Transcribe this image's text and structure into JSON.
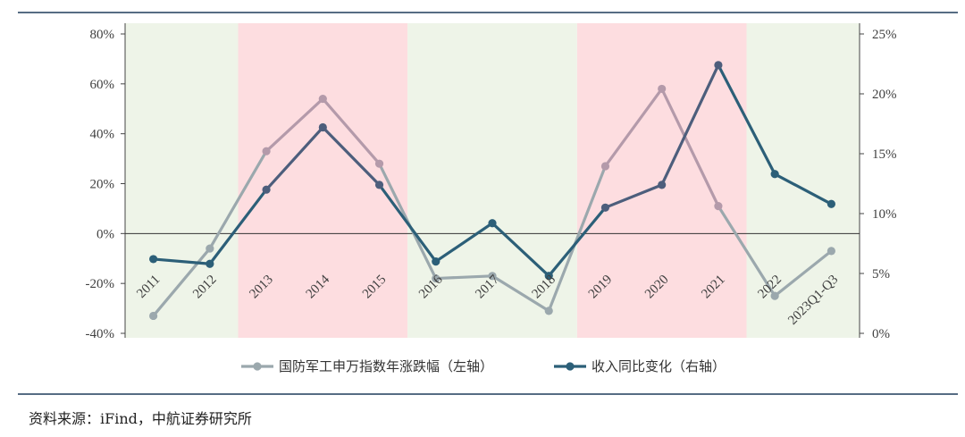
{
  "chart_data": {
    "type": "line",
    "categories": [
      "2011",
      "2012",
      "2013",
      "2014",
      "2015",
      "2016",
      "2017",
      "2018",
      "2019",
      "2020",
      "2021",
      "2022",
      "2023Q1-Q3"
    ],
    "series": [
      {
        "name": "国防军工申万指数年涨跌幅（左轴）",
        "axis": "left",
        "values": [
          -0.33,
          -0.06,
          0.33,
          0.54,
          0.28,
          -0.18,
          -0.17,
          -0.31,
          0.27,
          0.58,
          0.11,
          -0.25,
          -0.07
        ]
      },
      {
        "name": "收入同比变化（右轴）",
        "axis": "right",
        "values": [
          0.062,
          0.058,
          0.12,
          0.172,
          0.124,
          0.06,
          0.092,
          0.048,
          0.105,
          0.124,
          0.224,
          0.133,
          0.108
        ]
      }
    ],
    "left_axis": {
      "range": [
        -0.4,
        0.8
      ],
      "ticks": [
        "80%",
        "60%",
        "40%",
        "20%",
        "0%",
        "-20%",
        "-40%"
      ]
    },
    "right_axis": {
      "range": [
        0,
        0.25
      ],
      "ticks": [
        "25%",
        "20%",
        "15%",
        "10%",
        "5%",
        "0%"
      ]
    },
    "shaded_regions": [
      {
        "from_index": 0,
        "to_index": 1,
        "color": "#eef4e8"
      },
      {
        "from_index": 2,
        "to_index": 4,
        "color": "#fddde0"
      },
      {
        "from_index": 5,
        "to_index": 7,
        "color": "#eef4e8"
      },
      {
        "from_index": 8,
        "to_index": 10,
        "color": "#fddde0"
      },
      {
        "from_index": 11,
        "to_index": 12,
        "color": "#eef4e8"
      }
    ],
    "colors": {
      "left_series": "#9ba8ad",
      "left_series_pink": "#b49aaa",
      "right_series": "#2c5f78",
      "right_series_dark": "#4d5e7c"
    },
    "legend_position": "bottom"
  },
  "source_note": "资料来源：iFind，中航证券研究所"
}
